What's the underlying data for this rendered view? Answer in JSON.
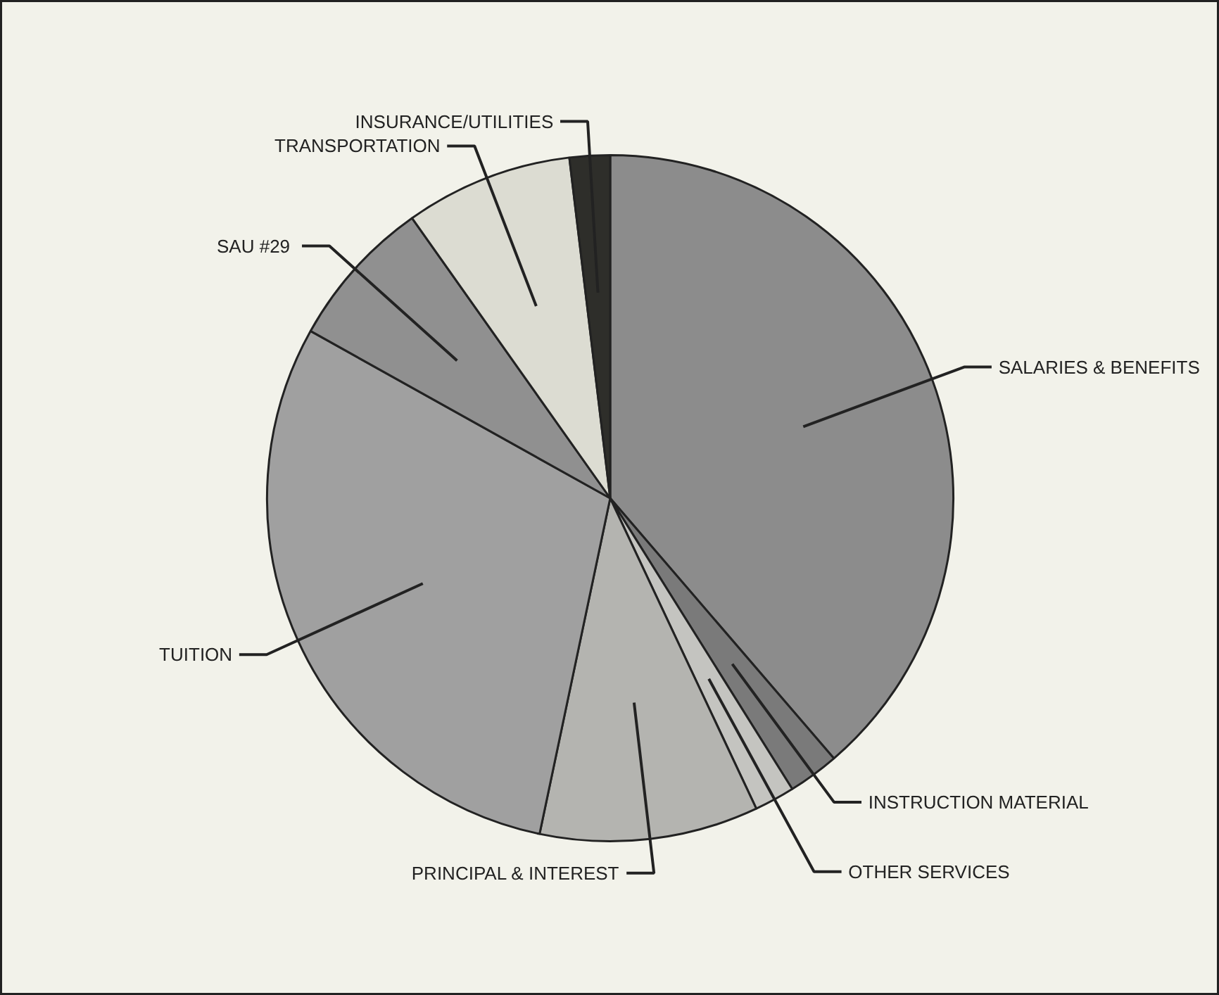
{
  "chart_data": {
    "type": "pie",
    "categories": [
      "SALARIES & BENEFITS",
      "INSTRUCTION MATERIAL",
      "OTHER SERVICES",
      "PRINCIPAL & INTEREST",
      "TUITION",
      "SAU  #29",
      "TRANSPORTATION",
      "INSURANCE/UTILITIES"
    ],
    "values": [
      38.7,
      2.4,
      1.9,
      10.3,
      29.8,
      7.1,
      7.9,
      1.9
    ],
    "colors": [
      "#8c8c8c",
      "#7a7a7a",
      "#c4c4c0",
      "#b4b4b0",
      "#a0a0a0",
      "#909090",
      "#dcdcd2",
      "#2e2e2a"
    ]
  }
}
